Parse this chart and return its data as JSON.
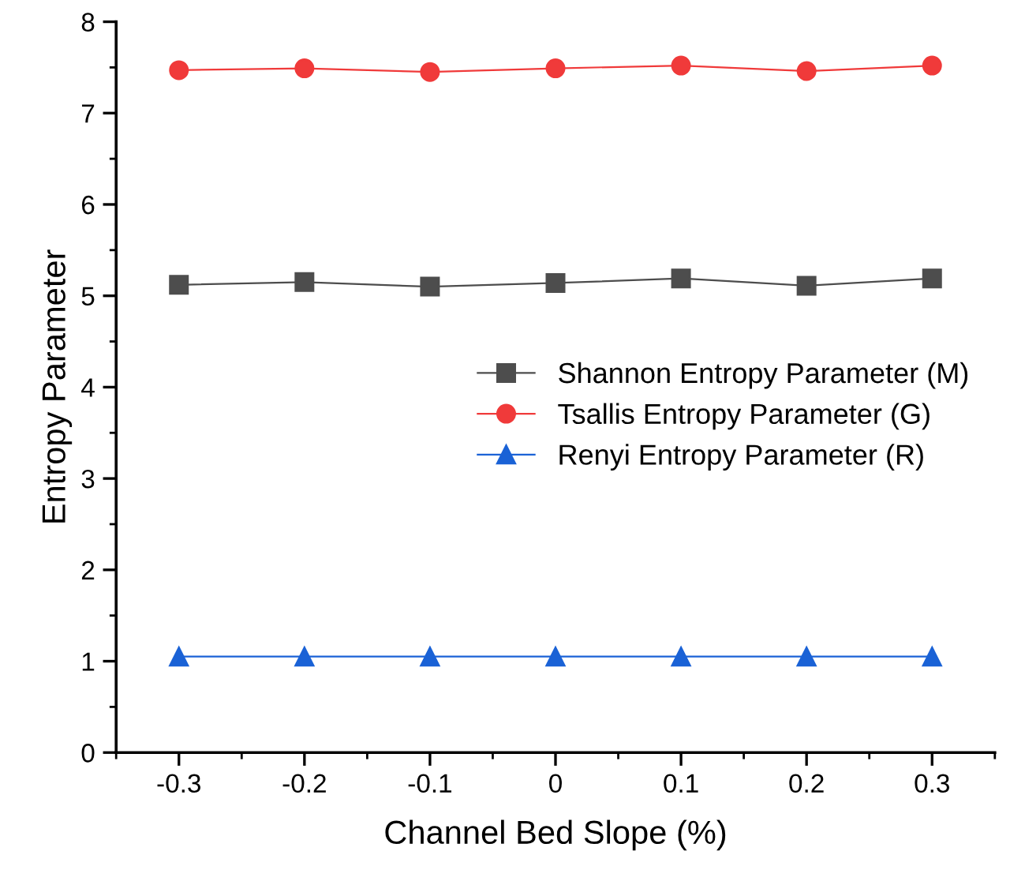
{
  "chart_data": {
    "type": "line",
    "xlabel": "Channel Bed Slope (%)",
    "ylabel": "Entropy Parameter",
    "x": [
      -0.3,
      -0.2,
      -0.1,
      0,
      0.1,
      0.2,
      0.3
    ],
    "series": [
      {
        "name": "Shannon Entropy Parameter (M)",
        "color": "#4d4d4d",
        "marker": "square",
        "values": [
          5.12,
          5.15,
          5.1,
          5.14,
          5.19,
          5.11,
          5.19
        ]
      },
      {
        "name": "Tsallis Entropy Parameter (G)",
        "color": "#f03a3a",
        "marker": "circle",
        "values": [
          7.47,
          7.49,
          7.45,
          7.49,
          7.52,
          7.46,
          7.52
        ]
      },
      {
        "name": "Renyi Entropy Parameter (R)",
        "color": "#1a62d6",
        "marker": "triangle",
        "values": [
          1.05,
          1.05,
          1.05,
          1.05,
          1.05,
          1.05,
          1.05
        ]
      }
    ],
    "xlim": [
      -0.35,
      0.35
    ],
    "xticks": [
      -0.3,
      -0.2,
      -0.1,
      0,
      0.1,
      0.2,
      0.3
    ],
    "ylim": [
      0,
      8
    ],
    "yticks": [
      0,
      1,
      2,
      3,
      4,
      5,
      6,
      7,
      8
    ],
    "grid": false,
    "legend": "center right",
    "line_style": "solid"
  }
}
